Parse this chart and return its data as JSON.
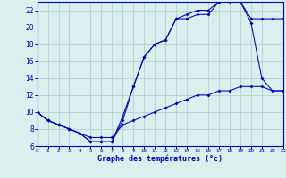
{
  "title": "Graphe des températures (°c)",
  "bg_color": "#daf0ee",
  "grid_color": "#aacccc",
  "line_color": "#0000bb",
  "xlim": [
    0,
    23
  ],
  "ylim": [
    6,
    23
  ],
  "xticks": [
    0,
    1,
    2,
    3,
    4,
    5,
    6,
    7,
    8,
    9,
    10,
    11,
    12,
    13,
    14,
    15,
    16,
    17,
    18,
    19,
    20,
    21,
    22,
    23
  ],
  "yticks": [
    6,
    8,
    10,
    12,
    14,
    16,
    18,
    20,
    22
  ],
  "line1_x": [
    0,
    1,
    2,
    3,
    4,
    5,
    6,
    7,
    8,
    9,
    10,
    11,
    12,
    13,
    14,
    15,
    16,
    17,
    18,
    19,
    20,
    21,
    22,
    23
  ],
  "line1_y": [
    10,
    9,
    8.5,
    8,
    7.5,
    6.5,
    6.5,
    6.5,
    9.5,
    13,
    16.5,
    18,
    18.5,
    21,
    21,
    21.5,
    21.5,
    23,
    23,
    23,
    20.5,
    14,
    12.5,
    12.5
  ],
  "line2_x": [
    0,
    1,
    2,
    3,
    4,
    5,
    6,
    7,
    8,
    9,
    10,
    11,
    12,
    13,
    14,
    15,
    16,
    17,
    18,
    19,
    20,
    21,
    22,
    23
  ],
  "line2_y": [
    10,
    9,
    8.5,
    8,
    7.5,
    6.5,
    6.5,
    6.5,
    9,
    13,
    16.5,
    18,
    18.5,
    21,
    21.5,
    22,
    22,
    23,
    23.5,
    23,
    21,
    21,
    21,
    21
  ],
  "line3_x": [
    0,
    1,
    2,
    3,
    4,
    5,
    6,
    7,
    8,
    9,
    10,
    11,
    12,
    13,
    14,
    15,
    16,
    17,
    18,
    19,
    20,
    21,
    22,
    23
  ],
  "line3_y": [
    10,
    9,
    8.5,
    8,
    7.5,
    7,
    7,
    7,
    8.5,
    9,
    9.5,
    10,
    10.5,
    11,
    11.5,
    12,
    12,
    12.5,
    12.5,
    13,
    13,
    13,
    12.5,
    12.5
  ]
}
